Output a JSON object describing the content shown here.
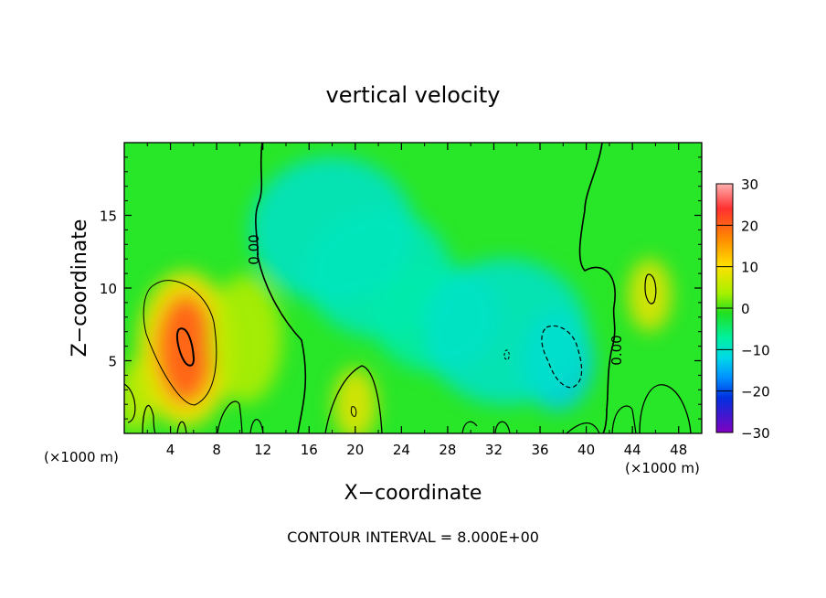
{
  "chart_data": {
    "type": "heatmap",
    "title": "vertical velocity",
    "xlabel": "X−coordinate",
    "ylabel": "Z−coordinate",
    "x_unit_left": "(×1000 m)",
    "x_unit_right": "(×1000 m)",
    "xlim": [
      0,
      50
    ],
    "ylim": [
      0,
      20
    ],
    "x_ticks": [
      4,
      8,
      12,
      16,
      20,
      24,
      28,
      32,
      36,
      40,
      44,
      48
    ],
    "y_ticks": [
      5,
      10,
      15
    ],
    "colorbar": {
      "min": -30,
      "max": 30,
      "ticks": [
        30,
        20,
        10,
        0,
        -10,
        -20,
        -30
      ],
      "tick_labels": [
        "30",
        "20",
        "10",
        "0",
        "−10",
        "−20",
        "−30"
      ]
    },
    "contour_label": "0.00",
    "contour_interval_text": "CONTOUR INTERVAL = 8.000E+00",
    "features": [
      {
        "x": 5.3,
        "z": 5.8,
        "value": 20
      },
      {
        "x": 10.5,
        "z": 6.5,
        "value": 6
      },
      {
        "x": 20,
        "z": 2,
        "value": 9
      },
      {
        "x": 1.0,
        "z": 2.5,
        "value": 7
      },
      {
        "x": 45.5,
        "z": 9.5,
        "value": 9
      },
      {
        "x": 18,
        "z": 14,
        "value": -6
      },
      {
        "x": 22,
        "z": 11,
        "value": -5
      },
      {
        "x": 27,
        "z": 8,
        "value": -4
      },
      {
        "x": 37.5,
        "z": 5.0,
        "value": -9
      },
      {
        "x": 33,
        "z": 7,
        "value": -6
      }
    ]
  }
}
